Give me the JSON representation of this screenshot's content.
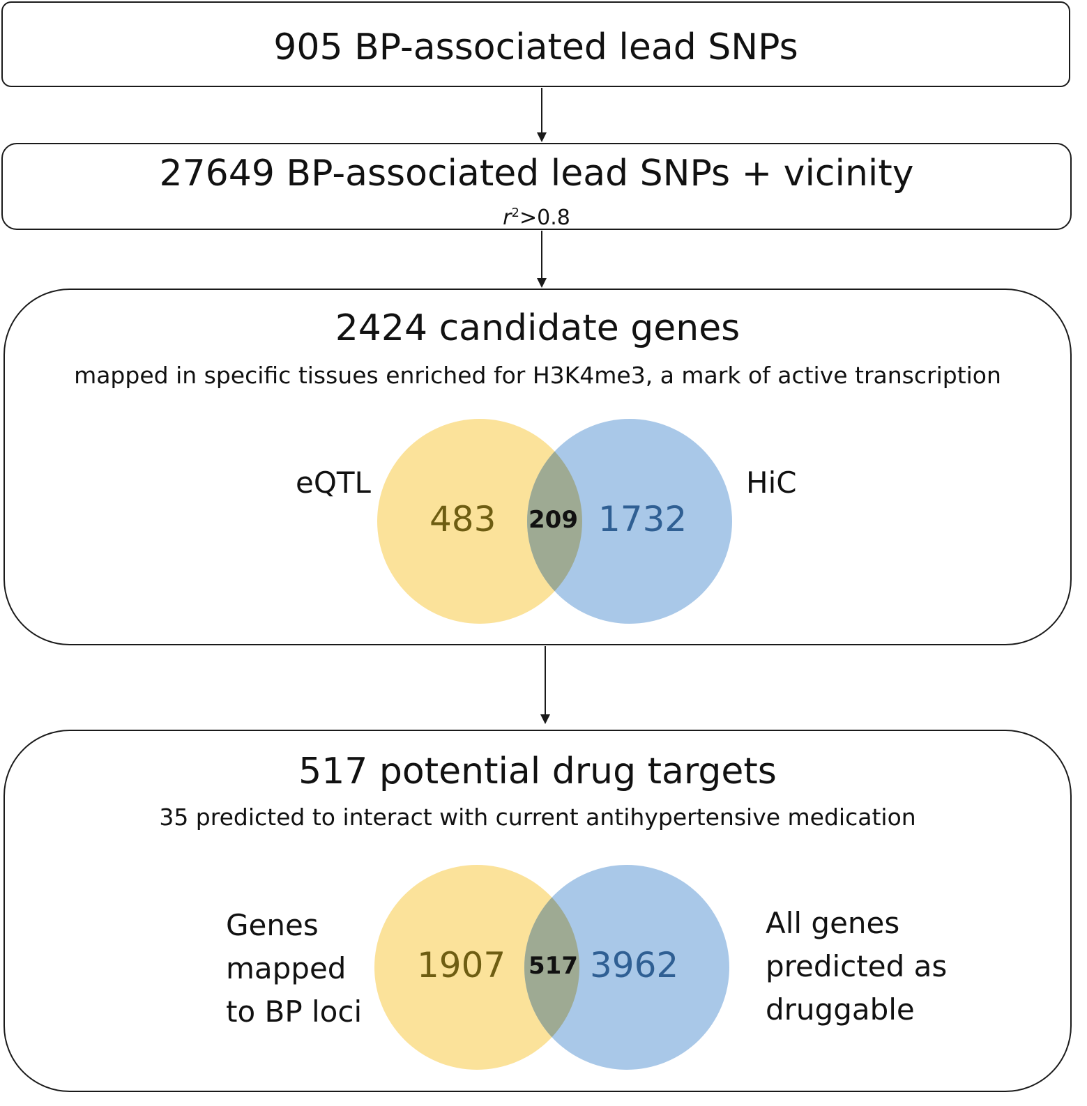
{
  "steps": {
    "lead_snps": "905 BP-associated lead SNPs",
    "vicinity_main": "27649 BP-associated lead SNPs + vicinity",
    "vicinity_r": "r",
    "vicinity_sup": "2",
    "vicinity_rest": ">0.8",
    "candidate_title": "2424 candidate genes",
    "candidate_sub": "mapped in specific tissues enriched for H3K4me3, a mark of active transcription",
    "drug_title": "517 potential drug targets",
    "drug_sub": "35 predicted to interact with current antihypertensive medication"
  },
  "venn1": {
    "left_label": "eQTL",
    "right_label": "HiC",
    "left_only": "483",
    "overlap": "209",
    "right_only": "1732"
  },
  "venn2": {
    "left_label": "Genes\nmapped\nto BP loci",
    "right_label": "All genes\npredicted as\ndruggable",
    "left_only": "1907",
    "overlap": "517",
    "right_only": "3962"
  },
  "colors": {
    "yellow": "#fbe29a",
    "blue": "#a9c8e8",
    "overlap": "#9eaa93",
    "yellow_text": "#6e5d12",
    "blue_text": "#2f5f93"
  }
}
